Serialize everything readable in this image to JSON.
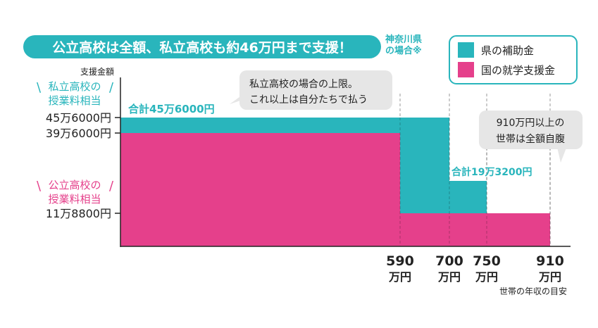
{
  "colors": {
    "teal": "#29b5bc",
    "pink": "#e5408b",
    "bubble": "#e6e6e6",
    "axis": "#222222"
  },
  "header": {
    "title": "公立高校は全額、私立高校も約46万円まで支援！",
    "note_line1": "神奈川県",
    "note_line2": "の場合※"
  },
  "chart_data": {
    "type": "bar",
    "subtype": "stacked-step",
    "ylabel": "支援金額",
    "xlabel": "世帯の年収の目安",
    "x_breakpoints": [
      590,
      700,
      750,
      910
    ],
    "x_tick_labels": [
      {
        "top": "590",
        "bottom": "万円"
      },
      {
        "top": "700",
        "bottom": "万円"
      },
      {
        "top": "750",
        "bottom": "万円"
      },
      {
        "top": "910",
        "bottom": "万円"
      }
    ],
    "y_ticks": [
      {
        "value": 456000,
        "label": "45万6000円"
      },
      {
        "value": 396000,
        "label": "39万6000円"
      },
      {
        "value": 118800,
        "label": "11万8800円"
      }
    ],
    "y_group_labels": [
      {
        "line1": "私立高校の",
        "line2": "授業料相当",
        "color": "teal"
      },
      {
        "line1": "公立高校の",
        "line2": "授業料相当",
        "color": "pink"
      }
    ],
    "segments": [
      {
        "range": [
          "",
          590
        ],
        "national": 396000,
        "prefectural": 60000
      },
      {
        "range": [
          590,
          700
        ],
        "national": 118800,
        "prefectural": 337200
      },
      {
        "range": [
          700,
          750
        ],
        "national": 118800,
        "prefectural": 74400
      },
      {
        "range": [
          750,
          910
        ],
        "national": 118800,
        "prefectural": 0
      }
    ],
    "series": [
      {
        "name": "県の補助金",
        "color": "#29b5bc"
      },
      {
        "name": "国の就学支援金",
        "color": "#e5408b"
      }
    ],
    "legend_placement": "top-right",
    "annotations": {
      "total_max": "合計45万6000円",
      "total_mid": "合計19万3200円",
      "callout1_line1": "私立高校の場合の上限。",
      "callout1_line2": "これ以上は自分たちで払う",
      "callout2_line1": "910万円以上の",
      "callout2_line2": "世帯は全額自腹"
    }
  }
}
